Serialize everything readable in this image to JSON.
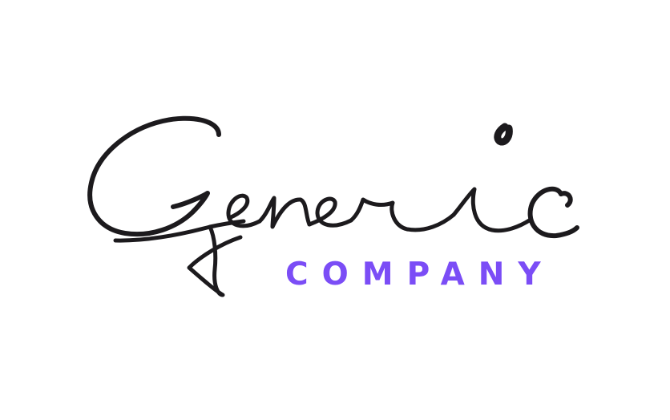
{
  "logo": {
    "wordmark": "Generic",
    "subtitle": "COMPANY",
    "colors": {
      "wordmark": "#1c1a1d",
      "subtitle": "#7b4df6",
      "background": "#ffffff"
    }
  }
}
